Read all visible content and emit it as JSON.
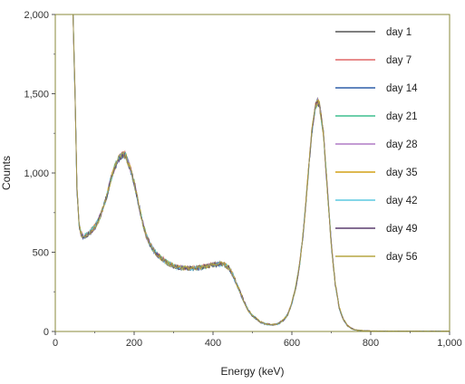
{
  "chart_data": {
    "type": "line",
    "title": "",
    "xlabel": "Energy (keV)",
    "ylabel": "Counts",
    "xlim": [
      0,
      1000
    ],
    "ylim": [
      0,
      2000
    ],
    "x_ticks": [
      0,
      200,
      400,
      600,
      800,
      1000
    ],
    "x_tick_labels": [
      "0",
      "200",
      "400",
      "600",
      "800",
      "1,000"
    ],
    "y_ticks": [
      0,
      500,
      1000,
      1500,
      2000
    ],
    "y_tick_labels": [
      "0",
      "500",
      "1,000",
      "1,500",
      "2,000"
    ],
    "grid": false,
    "legend_position": "top-right",
    "frame_color": "#8a8a3a",
    "x": [
      40,
      45,
      50,
      55,
      60,
      65,
      70,
      80,
      90,
      100,
      110,
      120,
      130,
      140,
      150,
      160,
      170,
      175,
      180,
      190,
      200,
      210,
      220,
      230,
      240,
      250,
      260,
      280,
      300,
      320,
      340,
      360,
      380,
      400,
      410,
      420,
      430,
      440,
      450,
      460,
      470,
      480,
      490,
      500,
      510,
      520,
      530,
      540,
      550,
      560,
      570,
      580,
      590,
      600,
      610,
      620,
      630,
      640,
      650,
      660,
      665,
      670,
      680,
      690,
      700,
      710,
      720,
      730,
      740,
      750,
      760,
      780,
      800,
      850,
      900,
      950,
      1000
    ],
    "series": [
      {
        "name": "day 1",
        "color": "#555555",
        "values": [
          2000,
          2000,
          1500,
          900,
          680,
          620,
          600,
          610,
          630,
          660,
          700,
          770,
          850,
          950,
          1030,
          1090,
          1110,
          1115,
          1100,
          1030,
          940,
          820,
          700,
          610,
          550,
          510,
          480,
          440,
          410,
          400,
          400,
          400,
          410,
          420,
          425,
          428,
          420,
          400,
          360,
          300,
          240,
          180,
          130,
          100,
          80,
          60,
          50,
          45,
          42,
          45,
          55,
          75,
          110,
          180,
          280,
          430,
          650,
          950,
          1250,
          1420,
          1450,
          1430,
          1250,
          900,
          550,
          300,
          150,
          80,
          40,
          20,
          10,
          5,
          3,
          2,
          2,
          2,
          2
        ]
      },
      {
        "name": "day 7",
        "color": "#e06666",
        "values": [
          2000,
          2000,
          1520,
          910,
          690,
          625,
          605,
          615,
          635,
          665,
          705,
          775,
          855,
          955,
          1035,
          1095,
          1120,
          1125,
          1105,
          1035,
          945,
          825,
          705,
          615,
          555,
          515,
          485,
          445,
          415,
          405,
          402,
          404,
          412,
          422,
          428,
          430,
          422,
          402,
          362,
          302,
          242,
          182,
          132,
          102,
          82,
          62,
          52,
          47,
          44,
          47,
          57,
          77,
          112,
          182,
          282,
          432,
          652,
          955,
          1255,
          1425,
          1455,
          1435,
          1255,
          905,
          555,
          302,
          152,
          82,
          42,
          22,
          11,
          6,
          3,
          2,
          2,
          2,
          2
        ]
      },
      {
        "name": "day 14",
        "color": "#2e5fa8",
        "values": [
          2000,
          2000,
          1490,
          895,
          675,
          618,
          598,
          608,
          628,
          658,
          698,
          768,
          848,
          948,
          1028,
          1088,
          1108,
          1112,
          1098,
          1028,
          938,
          818,
          698,
          608,
          548,
          508,
          478,
          438,
          408,
          398,
          398,
          398,
          408,
          418,
          423,
          426,
          418,
          398,
          358,
          298,
          238,
          178,
          128,
          98,
          78,
          58,
          48,
          43,
          40,
          43,
          53,
          73,
          108,
          178,
          278,
          428,
          648,
          948,
          1248,
          1418,
          1448,
          1428,
          1248,
          898,
          548,
          298,
          148,
          78,
          38,
          18,
          9,
          4,
          2,
          2,
          2,
          2,
          2
        ]
      },
      {
        "name": "day 21",
        "color": "#3fbf8f",
        "values": [
          2000,
          2000,
          1510,
          905,
          685,
          622,
          602,
          612,
          632,
          662,
          702,
          772,
          852,
          952,
          1032,
          1092,
          1114,
          1118,
          1102,
          1032,
          942,
          822,
          702,
          612,
          552,
          512,
          482,
          442,
          412,
          402,
          400,
          402,
          410,
          420,
          426,
          429,
          421,
          401,
          361,
          301,
          241,
          181,
          131,
          101,
          81,
          61,
          51,
          46,
          43,
          46,
          56,
          76,
          111,
          181,
          281,
          431,
          651,
          952,
          1252,
          1422,
          1452,
          1432,
          1252,
          902,
          552,
          301,
          151,
          81,
          41,
          21,
          10,
          5,
          3,
          2,
          2,
          2,
          2
        ]
      },
      {
        "name": "day 28",
        "color": "#b07cc6",
        "values": [
          2000,
          2000,
          1500,
          900,
          680,
          620,
          600,
          610,
          630,
          660,
          700,
          770,
          850,
          950,
          1030,
          1090,
          1112,
          1116,
          1100,
          1030,
          940,
          820,
          700,
          610,
          550,
          510,
          480,
          440,
          410,
          400,
          400,
          400,
          410,
          420,
          425,
          428,
          420,
          400,
          360,
          300,
          240,
          180,
          130,
          100,
          80,
          60,
          50,
          45,
          42,
          45,
          55,
          75,
          110,
          180,
          280,
          430,
          650,
          950,
          1250,
          1420,
          1450,
          1430,
          1250,
          900,
          550,
          300,
          150,
          80,
          40,
          20,
          10,
          5,
          3,
          2,
          2,
          2,
          2
        ]
      },
      {
        "name": "day 35",
        "color": "#d4a017",
        "values": [
          2000,
          2000,
          1505,
          902,
          682,
          621,
          601,
          611,
          631,
          661,
          701,
          771,
          851,
          951,
          1031,
          1091,
          1113,
          1117,
          1101,
          1031,
          941,
          821,
          701,
          611,
          551,
          511,
          481,
          441,
          411,
          401,
          401,
          401,
          411,
          421,
          426,
          429,
          421,
          401,
          361,
          301,
          241,
          181,
          131,
          101,
          81,
          61,
          51,
          46,
          43,
          46,
          56,
          76,
          111,
          181,
          281,
          431,
          651,
          951,
          1251,
          1421,
          1451,
          1431,
          1251,
          901,
          551,
          301,
          151,
          81,
          41,
          21,
          10,
          5,
          3,
          2,
          2,
          2,
          2
        ]
      },
      {
        "name": "day 42",
        "color": "#5bc8e0",
        "values": [
          2000,
          2000,
          1495,
          898,
          678,
          619,
          599,
          609,
          629,
          659,
          699,
          769,
          849,
          949,
          1029,
          1089,
          1111,
          1115,
          1099,
          1029,
          939,
          819,
          699,
          609,
          549,
          509,
          479,
          439,
          409,
          399,
          399,
          399,
          409,
          419,
          424,
          427,
          419,
          399,
          359,
          299,
          239,
          179,
          129,
          99,
          79,
          59,
          49,
          44,
          41,
          44,
          54,
          74,
          109,
          179,
          279,
          429,
          649,
          949,
          1249,
          1419,
          1449,
          1429,
          1249,
          899,
          549,
          299,
          149,
          79,
          39,
          19,
          9,
          4,
          2,
          2,
          2,
          2,
          2
        ]
      },
      {
        "name": "day 49",
        "color": "#5a3d6e",
        "values": [
          2000,
          2000,
          1500,
          900,
          680,
          620,
          600,
          610,
          630,
          660,
          700,
          770,
          850,
          950,
          1030,
          1090,
          1110,
          1115,
          1100,
          1030,
          940,
          820,
          700,
          610,
          550,
          510,
          480,
          440,
          410,
          400,
          400,
          400,
          410,
          420,
          425,
          428,
          420,
          400,
          360,
          300,
          240,
          180,
          130,
          100,
          80,
          60,
          50,
          45,
          42,
          45,
          55,
          75,
          110,
          180,
          280,
          430,
          650,
          950,
          1250,
          1420,
          1450,
          1430,
          1250,
          900,
          550,
          300,
          150,
          80,
          40,
          20,
          10,
          5,
          3,
          2,
          2,
          2,
          2
        ]
      },
      {
        "name": "day 56",
        "color": "#b5a642",
        "values": [
          2000,
          2000,
          1502,
          901,
          681,
          620,
          600,
          610,
          630,
          660,
          700,
          770,
          850,
          950,
          1030,
          1090,
          1112,
          1116,
          1100,
          1030,
          940,
          820,
          700,
          610,
          550,
          510,
          480,
          440,
          410,
          400,
          400,
          400,
          410,
          420,
          425,
          428,
          420,
          400,
          360,
          300,
          240,
          180,
          130,
          100,
          80,
          60,
          50,
          45,
          42,
          45,
          55,
          75,
          110,
          180,
          280,
          430,
          650,
          950,
          1250,
          1420,
          1450,
          1430,
          1250,
          900,
          550,
          300,
          150,
          80,
          40,
          20,
          10,
          5,
          3,
          2,
          2,
          2,
          2
        ]
      }
    ]
  }
}
